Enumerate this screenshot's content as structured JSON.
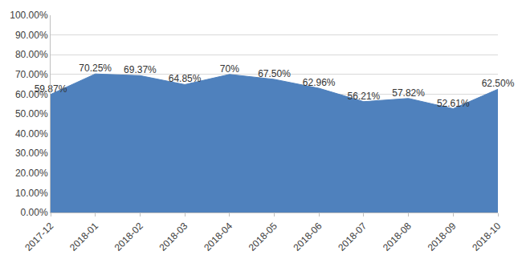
{
  "chart_data": {
    "type": "area",
    "categories": [
      "2017-12",
      "2018-01",
      "2018-02",
      "2018-03",
      "2018-04",
      "2018-05",
      "2018-06",
      "2018-07",
      "2018-08",
      "2018-09",
      "2018-10"
    ],
    "values": [
      59.87,
      70.25,
      69.37,
      64.85,
      70,
      67.5,
      62.96,
      56.21,
      57.82,
      52.61,
      62.5
    ],
    "value_labels": [
      "59.87%",
      "70.25%",
      "69.37%",
      "64.85%",
      "70%",
      "67.50%",
      "62.96%",
      "56.21%",
      "57.82%",
      "52.61%",
      "62.50%"
    ],
    "color": "#4f81bd",
    "ylim": [
      0,
      100
    ],
    "yticks": [
      {
        "value": 0,
        "label": "0.00%"
      },
      {
        "value": 10,
        "label": "10.00%"
      },
      {
        "value": 20,
        "label": "20.00%"
      },
      {
        "value": 30,
        "label": "30.00%"
      },
      {
        "value": 40,
        "label": "40.00%"
      },
      {
        "value": 50,
        "label": "50.00%"
      },
      {
        "value": 60,
        "label": "60.00%"
      },
      {
        "value": 70,
        "label": "70.00%"
      },
      {
        "value": 80,
        "label": "80.00%"
      },
      {
        "value": 90,
        "label": "90.00%"
      },
      {
        "value": 100,
        "label": "100.00%"
      }
    ],
    "grid": true,
    "data_labels": true
  }
}
